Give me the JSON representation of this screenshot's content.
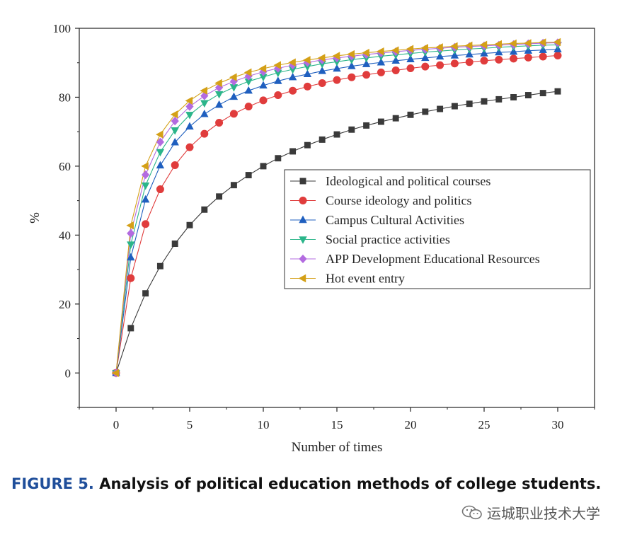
{
  "figure": {
    "label": "FIGURE 5.",
    "caption": "Analysis of political education methods of college students.",
    "watermark": "运城职业技术大学"
  },
  "chart_data": {
    "type": "line",
    "title": "",
    "xlabel": "Number of times",
    "ylabel": "%",
    "xlim": [
      -2.5,
      32.5
    ],
    "ylim": [
      -10,
      100
    ],
    "xticks": [
      0,
      5,
      10,
      15,
      20,
      25,
      30
    ],
    "yticks": [
      0,
      20,
      40,
      60,
      80,
      100
    ],
    "legend_position": "center-right",
    "grid": false,
    "x": [
      0,
      1,
      2,
      3,
      4,
      5,
      6,
      7,
      8,
      9,
      10,
      11,
      12,
      13,
      14,
      15,
      16,
      17,
      18,
      19,
      20,
      21,
      22,
      23,
      24,
      25,
      26,
      27,
      28,
      29,
      30
    ],
    "series": [
      {
        "name": "Ideological and political courses",
        "color": "#3a3a3a",
        "marker": "square",
        "values": [
          0,
          13,
          23.1,
          31,
          37.5,
          42.9,
          47.4,
          51.2,
          54.5,
          57.4,
          60,
          62.3,
          64.3,
          66.1,
          67.7,
          69.2,
          70.6,
          71.8,
          72.9,
          73.9,
          74.9,
          75.8,
          76.6,
          77.4,
          78.1,
          78.8,
          79.4,
          80,
          80.6,
          81.2,
          81.7
        ]
      },
      {
        "name": "Course ideology and politics",
        "color": "#e03c3c",
        "marker": "circle",
        "values": [
          0,
          27.5,
          43.2,
          53.3,
          60.3,
          65.5,
          69.4,
          72.6,
          75.2,
          77.3,
          79.1,
          80.6,
          81.9,
          83.1,
          84.1,
          85,
          85.8,
          86.5,
          87.2,
          87.8,
          88.4,
          88.9,
          89.3,
          89.8,
          90.2,
          90.6,
          90.9,
          91.2,
          91.5,
          91.8,
          92.1
        ]
      },
      {
        "name": "Campus Cultural Activities",
        "color": "#1f5fbf",
        "marker": "triangle-up",
        "values": [
          0,
          33.5,
          50.3,
          60.2,
          66.9,
          71.5,
          75.1,
          77.8,
          80.1,
          81.9,
          83.4,
          84.7,
          85.8,
          86.7,
          87.6,
          88.3,
          89,
          89.6,
          90.1,
          90.6,
          91,
          91.4,
          91.8,
          92.1,
          92.4,
          92.7,
          93,
          93.2,
          93.5,
          93.7,
          93.9
        ]
      },
      {
        "name": "Social practice activities",
        "color": "#2bb58a",
        "marker": "triangle-down",
        "values": [
          0,
          37.3,
          54.4,
          64.1,
          70.4,
          74.9,
          78.3,
          80.9,
          82.9,
          84.6,
          85.9,
          87.1,
          88.1,
          88.9,
          89.7,
          90.3,
          90.9,
          91.4,
          91.9,
          92.3,
          92.7,
          93.1,
          93.4,
          93.7,
          94,
          94.2,
          94.5,
          94.7,
          94.9,
          95.1,
          95.2
        ]
      },
      {
        "name": "APP Development Educational Resources",
        "color": "#b36be0",
        "marker": "diamond",
        "values": [
          0,
          40.5,
          57.5,
          67,
          73.1,
          77.3,
          80.4,
          82.8,
          84.6,
          86.1,
          87.4,
          88.4,
          89.3,
          90.1,
          90.8,
          91.4,
          91.9,
          92.4,
          92.8,
          93.2,
          93.6,
          93.9,
          94.2,
          94.5,
          94.7,
          94.9,
          95.1,
          95.3,
          95.5,
          95.7,
          95.8
        ]
      },
      {
        "name": "Hot event entry",
        "color": "#d4a017",
        "marker": "triangle-left",
        "values": [
          0,
          42.8,
          60,
          69.2,
          75,
          79,
          81.9,
          84.1,
          85.8,
          87.2,
          88.3,
          89.3,
          90.1,
          90.8,
          91.4,
          92,
          92.5,
          92.9,
          93.3,
          93.6,
          94,
          94.3,
          94.5,
          94.8,
          95,
          95.2,
          95.4,
          95.6,
          95.7,
          95.9,
          96
        ]
      }
    ]
  }
}
